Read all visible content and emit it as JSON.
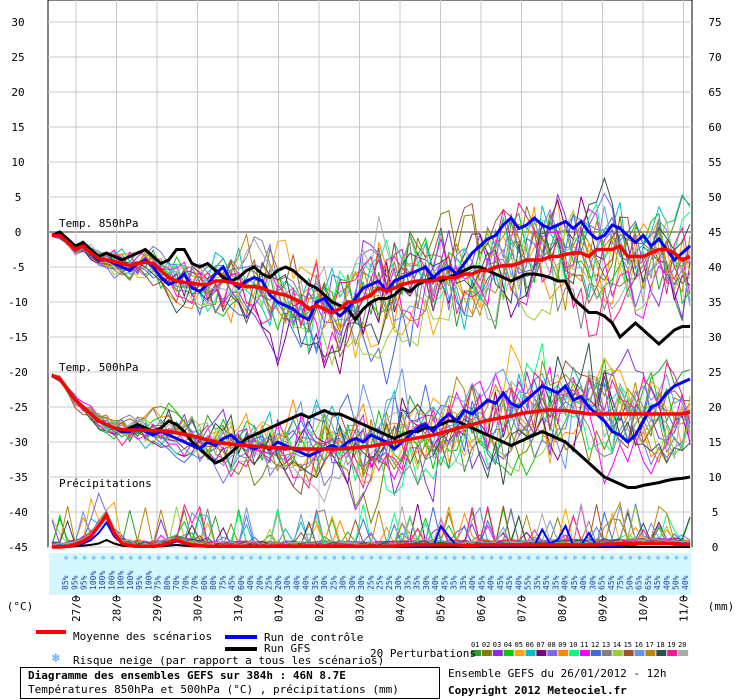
{
  "chart_data": {
    "type": "line",
    "title": "Diagramme des ensembles GEFS sur 384h : 46N 8.7E",
    "subtitle": "Températures 850hPa et 500hPa (°C) , précipitations (mm)",
    "left_axis": {
      "unit": "(°C)",
      "ticks": [
        30,
        25,
        20,
        15,
        10,
        5,
        0,
        -5,
        -10,
        -15,
        -20,
        -25,
        -30,
        -35,
        -40,
        -45
      ],
      "range": [
        -45,
        30
      ]
    },
    "right_axis": {
      "unit": "(mm)",
      "ticks": [
        75,
        70,
        65,
        60,
        55,
        50,
        45,
        40,
        35,
        30,
        25,
        20,
        15,
        10,
        5,
        0
      ],
      "range": [
        0,
        75
      ]
    },
    "x_tick_labels": [
      "27/01",
      "28/01",
      "29/01",
      "30/01",
      "31/01",
      "01/02",
      "02/02",
      "03/02",
      "04/02",
      "05/02",
      "06/02",
      "07/02",
      "08/02",
      "09/02",
      "10/02",
      "11/02"
    ],
    "panel_labels": {
      "t850": "Temp. 850hPa",
      "t500": "Temp. 500hPa",
      "precip": "Précipitations"
    },
    "snow_risk_pct": [
      "85%",
      "95%",
      "95%",
      "100%",
      "100%",
      "100%",
      "100%",
      "100%",
      "95%",
      "100%",
      "75%",
      "80%",
      "70%",
      "70%",
      "70%",
      "60%",
      "80%",
      "75%",
      "45%",
      "60%",
      "40%",
      "20%",
      "25%",
      "20%",
      "30%",
      "40%",
      "40%",
      "35%",
      "30%",
      "25%",
      "30%",
      "30%",
      "30%",
      "25%",
      "25%",
      "25%",
      "30%",
      "35%",
      "35%",
      "30%",
      "40%",
      "45%",
      "35%",
      "35%",
      "40%",
      "45%",
      "40%",
      "45%",
      "45%",
      "40%",
      "55%",
      "35%",
      "45%",
      "35%",
      "40%",
      "45%",
      "40%",
      "30%",
      "65%",
      "45%",
      "75%",
      "50%",
      "65%",
      "65%",
      "45%",
      "40%",
      "50%",
      "40%"
    ],
    "series": [
      {
        "name": "Moyenne des scénarios",
        "color": "#ff0000",
        "t850": [
          -0.5,
          -0.5,
          -1.5,
          -2.5,
          -2.0,
          -3.0,
          -3.8,
          -4.0,
          -4.2,
          -4.5,
          -4.8,
          -4.5,
          -4.3,
          -4.5,
          -5.5,
          -6.5,
          -7.0,
          -7.2,
          -7.3,
          -7.5,
          -7.5,
          -7.0,
          -7.0,
          -7.2,
          -7.5,
          -7.8,
          -7.8,
          -8.0,
          -8.5,
          -8.8,
          -9.0,
          -9.5,
          -10.0,
          -11.0,
          -10.5,
          -11.0,
          -11.5,
          -11.0,
          -10.0,
          -10.0,
          -9.5,
          -9.0,
          -8.0,
          -8.5,
          -8.0,
          -7.5,
          -7.2,
          -7.0,
          -7.0,
          -7.0,
          -6.5,
          -6.5,
          -6.5,
          -6.0,
          -6.0,
          -5.5,
          -5.5,
          -5.0,
          -4.8,
          -4.8,
          -4.5,
          -4.0,
          -4.0,
          -4.0,
          -3.5,
          -3.5,
          -3.2,
          -3.0,
          -3.0,
          -3.5,
          -2.5,
          -2.5,
          -2.5,
          -2.0,
          -3.5,
          -3.5,
          -3.5,
          -3.0,
          -2.5,
          -2.5,
          -3.0,
          -4.0,
          -3.5
        ],
        "t500": [
          -20.5,
          -21.0,
          -22.5,
          -24.0,
          -25.0,
          -26.0,
          -27.0,
          -27.5,
          -28.0,
          -28.2,
          -28.3,
          -28.3,
          -28.3,
          -28.4,
          -28.4,
          -28.5,
          -28.7,
          -28.9,
          -29.1,
          -29.4,
          -29.7,
          -30.0,
          -30.2,
          -30.3,
          -30.4,
          -30.5,
          -30.6,
          -30.7,
          -30.8,
          -30.8,
          -30.9,
          -30.9,
          -31.0,
          -31.0,
          -31.0,
          -31.0,
          -31.0,
          -31.0,
          -30.9,
          -30.8,
          -30.7,
          -30.6,
          -30.4,
          -30.2,
          -30.0,
          -29.8,
          -29.6,
          -29.4,
          -29.2,
          -29.0,
          -28.7,
          -28.4,
          -28.1,
          -27.8,
          -27.5,
          -27.2,
          -26.9,
          -26.7,
          -26.5,
          -26.3,
          -26.0,
          -25.8,
          -25.7,
          -25.5,
          -25.4,
          -25.5,
          -25.5,
          -25.7,
          -25.8,
          -26.0,
          -26.0,
          -26.0,
          -26.0,
          -26.0,
          -26.0,
          -26.0,
          -26.0,
          -26.0,
          -26.0,
          -26.0,
          -26.0,
          -26.0,
          -25.7
        ],
        "precip": [
          0,
          0,
          0.1,
          0.3,
          0.8,
          1.5,
          3.0,
          4.5,
          2.0,
          0.5,
          0.2,
          0.1,
          0.1,
          0.1,
          0.2,
          0.6,
          1.0,
          0.6,
          0.3,
          0.2,
          0.1,
          0.1,
          0.1,
          0.1,
          0.1,
          0.1,
          0.1,
          0.1,
          0.1,
          0.1,
          0.1,
          0.1,
          0.1,
          0.1,
          0.1,
          0.1,
          0.1,
          0.1,
          0.1,
          0.1,
          0.1,
          0.1,
          0.1,
          0.1,
          0.1,
          0.2,
          0.3,
          0.3,
          0.3,
          0.3,
          0.3,
          0.3,
          0.3,
          0.2,
          0.2,
          0.3,
          0.3,
          0.3,
          0.3,
          0.3,
          0.3,
          0.3,
          0.3,
          0.3,
          0.3,
          0.3,
          0.3,
          0.3,
          0.3,
          0.3,
          0.3,
          0.4,
          0.4,
          0.5,
          0.5,
          0.5,
          0.5,
          0.5,
          0.5,
          0.5,
          0.5,
          0.4,
          0.4
        ]
      },
      {
        "name": "Run de contrôle",
        "color": "#0000ff",
        "t850": [
          -0.5,
          -0.5,
          -1.5,
          -2.5,
          -2.0,
          -3.0,
          -4.0,
          -4.0,
          -4.5,
          -5.0,
          -5.5,
          -4.5,
          -4.0,
          -5.0,
          -6.5,
          -7.5,
          -7.0,
          -6.0,
          -8.0,
          -8.5,
          -7.5,
          -6.0,
          -5.0,
          -7.0,
          -8.0,
          -7.0,
          -6.5,
          -7.0,
          -9.0,
          -10.0,
          -10.5,
          -11.0,
          -12.0,
          -12.5,
          -10.0,
          -9.5,
          -11.0,
          -12.0,
          -11.0,
          -9.5,
          -8.0,
          -7.5,
          -7.0,
          -8.5,
          -7.0,
          -6.5,
          -6.0,
          -5.5,
          -5.0,
          -6.5,
          -5.5,
          -5.0,
          -6.0,
          -4.5,
          -3.0,
          -2.0,
          -1.0,
          -0.5,
          1.0,
          2.0,
          0.5,
          1.0,
          2.0,
          1.0,
          0.5,
          1.0,
          1.5,
          0.5,
          1.5,
          0.0,
          -1.0,
          -0.5,
          1.0,
          0.5,
          -0.5,
          -1.5,
          -0.5,
          -2.0,
          -1.0,
          -2.5,
          -4.0,
          -3.0,
          -2.0
        ],
        "t500": [
          -20.5,
          -21.0,
          -22.5,
          -24.0,
          -25.0,
          -26.0,
          -27.0,
          -27.5,
          -28.0,
          -28.5,
          -28.5,
          -28.0,
          -28.5,
          -29.0,
          -28.5,
          -29.0,
          -29.5,
          -30.0,
          -30.5,
          -31.0,
          -30.0,
          -30.5,
          -29.5,
          -29.0,
          -30.0,
          -30.5,
          -31.0,
          -30.5,
          -31.0,
          -30.0,
          -30.5,
          -31.0,
          -31.5,
          -32.0,
          -31.5,
          -31.0,
          -30.5,
          -31.0,
          -30.0,
          -29.5,
          -30.0,
          -29.0,
          -29.5,
          -30.0,
          -31.0,
          -30.0,
          -29.0,
          -28.0,
          -27.5,
          -28.5,
          -27.0,
          -26.0,
          -27.0,
          -25.5,
          -26.0,
          -25.0,
          -24.0,
          -24.5,
          -23.0,
          -24.5,
          -25.0,
          -24.0,
          -23.0,
          -22.0,
          -22.5,
          -23.0,
          -22.0,
          -24.0,
          -23.5,
          -25.0,
          -26.0,
          -27.0,
          -28.5,
          -29.0,
          -30.0,
          -29.0,
          -27.0,
          -25.0,
          -24.5,
          -23.0,
          -22.0,
          -21.5,
          -21.0
        ],
        "precip": [
          0,
          0,
          0,
          0.2,
          0.5,
          1.0,
          2.0,
          3.5,
          1.5,
          0.5,
          0.2,
          0.1,
          0.1,
          0.1,
          0.1,
          0.4,
          0.8,
          0.5,
          0.2,
          0.1,
          0.1,
          0.1,
          0.1,
          0.1,
          0.1,
          0.1,
          0.1,
          0.1,
          0.1,
          0.1,
          0.1,
          0.1,
          0.1,
          0.1,
          0.1,
          0.1,
          0.1,
          0.1,
          0.1,
          0.1,
          0.1,
          0.1,
          0.1,
          0.1,
          0.1,
          0.1,
          0.1,
          0.1,
          0.1,
          0.1,
          3.0,
          1.5,
          0.2,
          0.2,
          0.2,
          0.1,
          0.1,
          0.1,
          0.1,
          0.1,
          0.2,
          0.1,
          0.2,
          2.5,
          0.5,
          1.0,
          3.0,
          0.2,
          0.2,
          2.0,
          0.2,
          0.2,
          0.2,
          0.2,
          0.3,
          0.3,
          0.5,
          0.5,
          0.5,
          0.5,
          0.3,
          0.3,
          0.3
        ]
      },
      {
        "name": "Run GFS",
        "color": "#000000",
        "t850": [
          -0.5,
          0.0,
          -1.0,
          -2.0,
          -1.5,
          -2.5,
          -3.5,
          -3.0,
          -3.5,
          -4.0,
          -3.5,
          -3.0,
          -2.5,
          -3.5,
          -4.5,
          -4.0,
          -2.5,
          -2.5,
          -4.5,
          -5.0,
          -4.5,
          -5.5,
          -6.5,
          -7.0,
          -6.5,
          -5.5,
          -5.0,
          -6.0,
          -6.5,
          -5.5,
          -5.0,
          -5.5,
          -6.5,
          -7.5,
          -8.0,
          -9.0,
          -10.0,
          -10.5,
          -11.0,
          -12.5,
          -11.0,
          -10.0,
          -9.5,
          -9.5,
          -9.0,
          -8.0,
          -8.5,
          -7.5,
          -7.0,
          -6.5,
          -7.0,
          -6.5,
          -6.0,
          -5.5,
          -5.0,
          -5.0,
          -5.5,
          -6.0,
          -6.5,
          -7.0,
          -6.5,
          -6.0,
          -6.0,
          -6.2,
          -6.5,
          -7.0,
          -7.0,
          -9.5,
          -10.5,
          -11.5,
          -11.5,
          -12.0,
          -13.0,
          -15.0,
          -14.0,
          -13.0,
          -14.0,
          -15.0,
          -16.0,
          -15.0,
          -14.0,
          -13.5,
          -13.5
        ],
        "t500": [
          -20.5,
          -21.0,
          -22.5,
          -24.0,
          -25.0,
          -26.0,
          -27.0,
          -27.5,
          -28.0,
          -28.5,
          -28.0,
          -27.5,
          -28.0,
          -28.5,
          -28.0,
          -27.0,
          -27.5,
          -28.5,
          -30.0,
          -31.0,
          -32.0,
          -33.0,
          -32.5,
          -31.5,
          -30.5,
          -29.5,
          -29.0,
          -28.5,
          -28.0,
          -27.5,
          -27.0,
          -26.5,
          -26.0,
          -26.5,
          -26.0,
          -25.5,
          -26.0,
          -26.0,
          -26.5,
          -27.0,
          -27.5,
          -28.0,
          -28.5,
          -29.0,
          -29.5,
          -29.0,
          -28.5,
          -28.5,
          -28.0,
          -28.0,
          -27.5,
          -27.0,
          -27.0,
          -27.5,
          -28.0,
          -28.5,
          -29.0,
          -29.5,
          -30.0,
          -30.5,
          -30.0,
          -29.5,
          -29.0,
          -28.5,
          -29.0,
          -29.5,
          -30.0,
          -31.0,
          -32.0,
          -33.0,
          -34.0,
          -35.0,
          -35.5,
          -36.0,
          -36.5,
          -36.5,
          -36.2,
          -36.0,
          -35.8,
          -35.5,
          -35.3,
          -35.2,
          -35.0
        ],
        "precip": [
          0,
          0,
          0,
          0.1,
          0.2,
          0.3,
          0.5,
          1.0,
          0.5,
          0.2,
          0.1,
          0,
          0,
          0,
          0.1,
          0.2,
          0.3,
          0.2,
          0.1,
          0.1,
          0.1,
          0,
          0,
          0,
          0,
          0,
          0,
          0,
          0,
          0,
          0,
          0,
          0,
          0,
          0,
          0,
          0,
          0,
          0,
          0,
          0,
          0,
          0,
          0,
          0,
          0,
          0,
          0,
          0,
          0,
          0,
          0,
          0,
          0,
          0,
          0,
          0,
          0,
          0,
          0,
          0,
          0,
          0,
          0,
          0,
          0,
          0,
          0,
          0,
          0,
          0,
          0,
          0,
          0,
          0,
          0,
          0,
          0,
          0,
          0,
          0,
          0,
          0
        ]
      }
    ],
    "perturbations": {
      "label": "20 Perturbations",
      "ids": [
        "01",
        "02",
        "03",
        "04",
        "05",
        "06",
        "07",
        "08",
        "09",
        "10",
        "11",
        "12",
        "13",
        "14",
        "15",
        "16",
        "17",
        "18",
        "19",
        "20"
      ],
      "colors": [
        "#2d9e2d",
        "#808000",
        "#8a2be2",
        "#00cc00",
        "#ffa500",
        "#00bfbf",
        "#800080",
        "#7b68ee",
        "#ff8c00",
        "#00ff7f",
        "#ff00ff",
        "#4169e1",
        "#808080",
        "#9acd32",
        "#a0522d",
        "#6495ed",
        "#b8860b",
        "#2f4f4f",
        "#ff1493",
        "#aaaaaa"
      ]
    }
  },
  "legend": {
    "mean": "Moyenne des scénarios",
    "control": "Run de contrôle",
    "gfs": "Run GFS",
    "snow": "Risque neige (par rapport a tous les scénarios)",
    "snow_icon": "snowflake-icon",
    "perturbations": "20 Perturbations"
  },
  "footer": {
    "title": "Diagramme des ensembles GEFS sur 384h : 46N 8.7E",
    "subtitle": "Températures 850hPa et 500hPa (°C) , précipitations (mm)",
    "run": "Ensemble GEFS du 26/01/2012 - 12h",
    "copyright": "Copyright 2012 Meteociel.fr"
  }
}
